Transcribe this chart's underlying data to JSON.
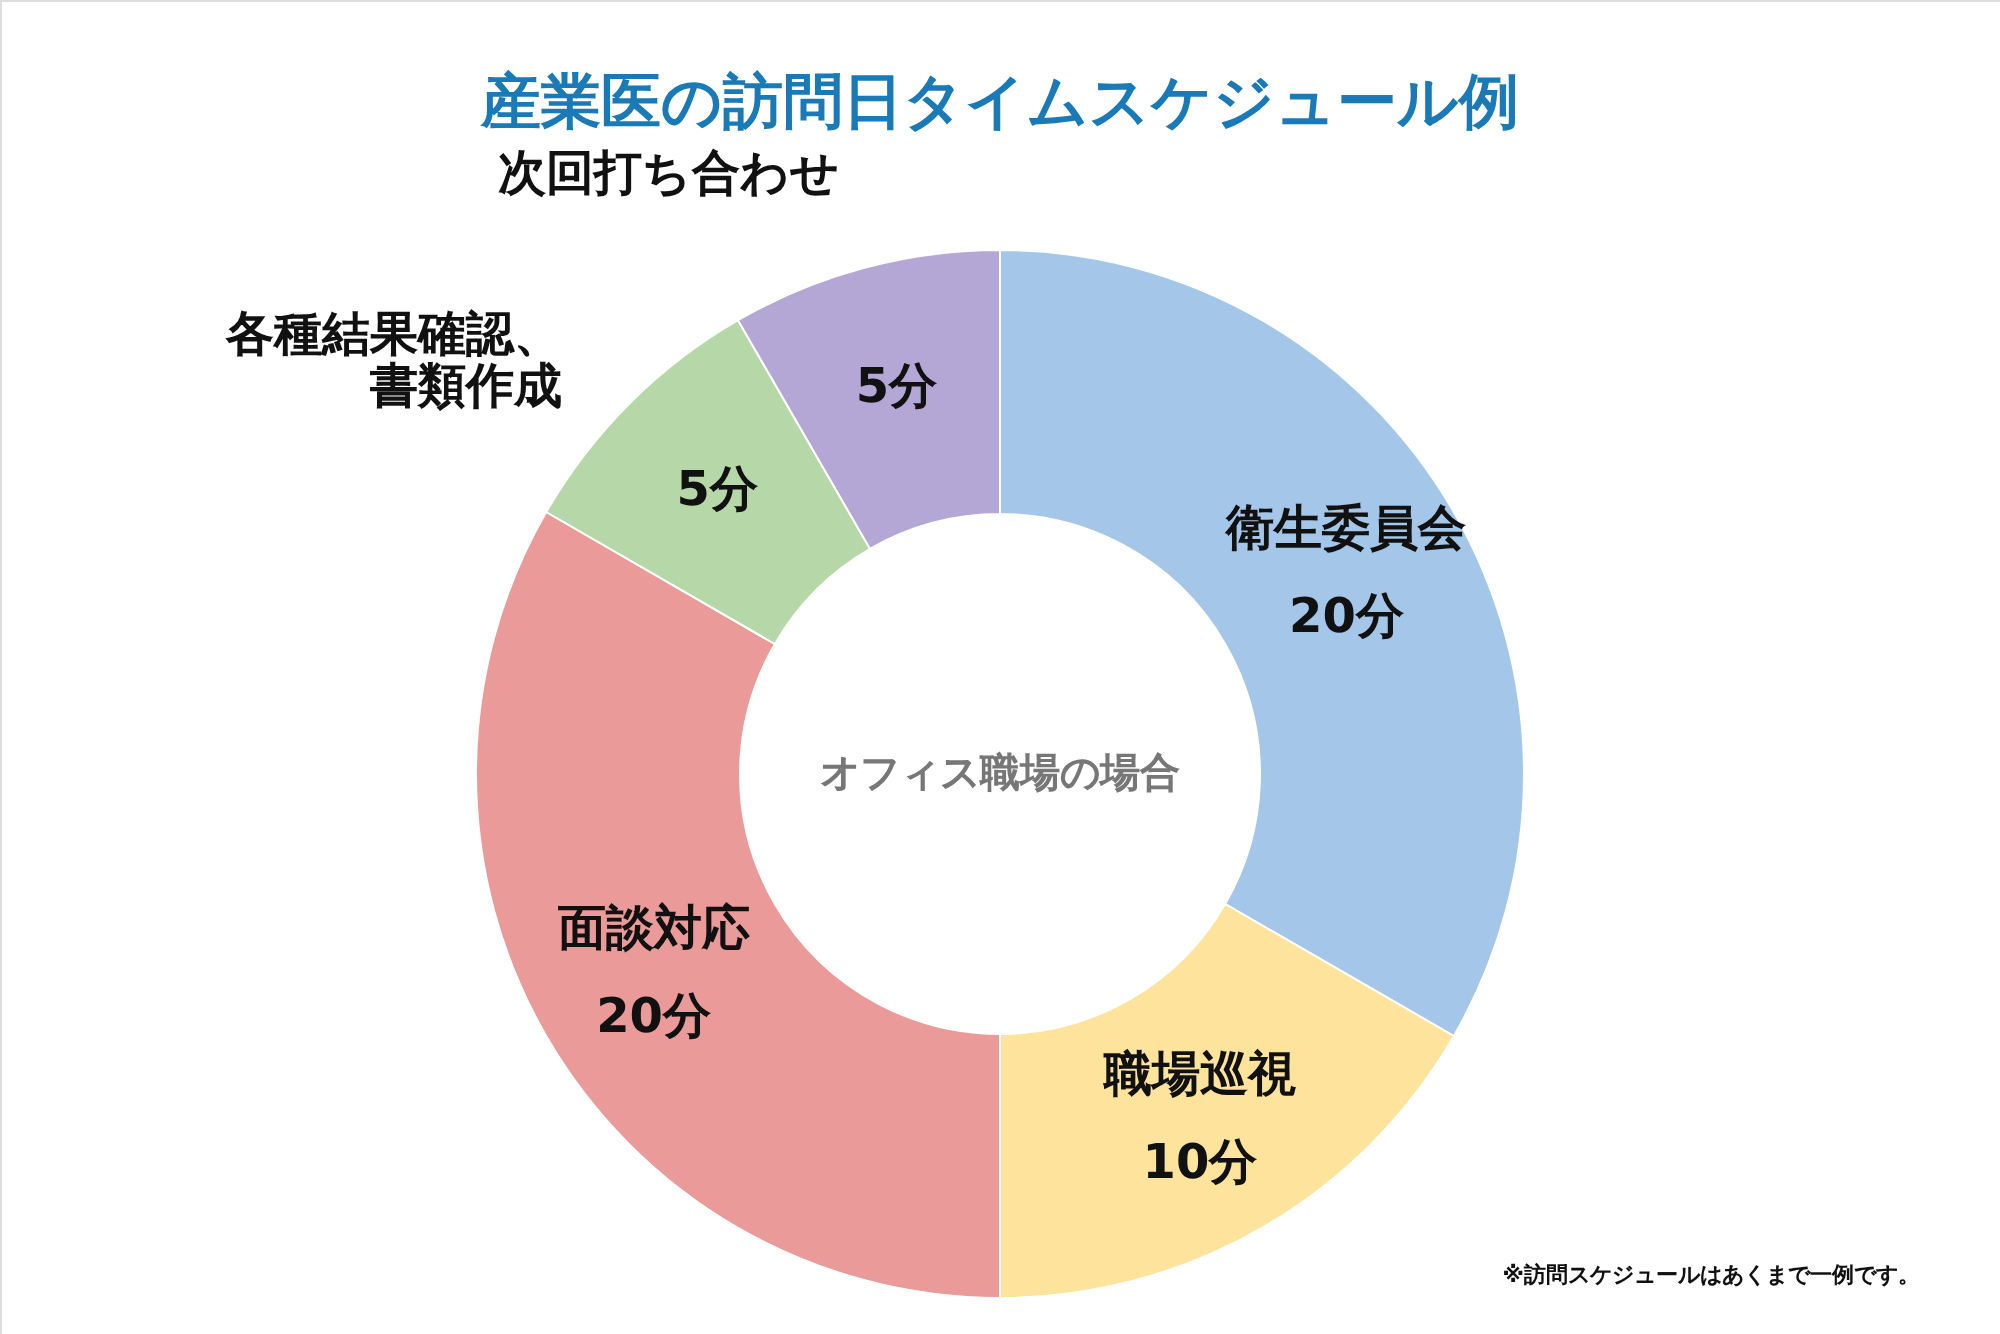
{
  "chart_data": {
    "type": "donut",
    "title": "産業医の訪問日タイムスケジュール例",
    "categories": [
      "衛生委員会",
      "職場巡視",
      "面談対応",
      "各種結果確認、書類作成",
      "次回打ち合わせ"
    ],
    "values": [
      20,
      10,
      20,
      5,
      5
    ],
    "value_labels": [
      "20分",
      "10分",
      "20分",
      "5分",
      "5分"
    ],
    "colors": [
      "#a4c6e8",
      "#fde39b",
      "#ea9a98",
      "#b6d8a8",
      "#b4a7d6"
    ],
    "annotations": [
      "オフィス職場の場合",
      "※訪問スケジュールはあくまで一例です。"
    ]
  }
}
